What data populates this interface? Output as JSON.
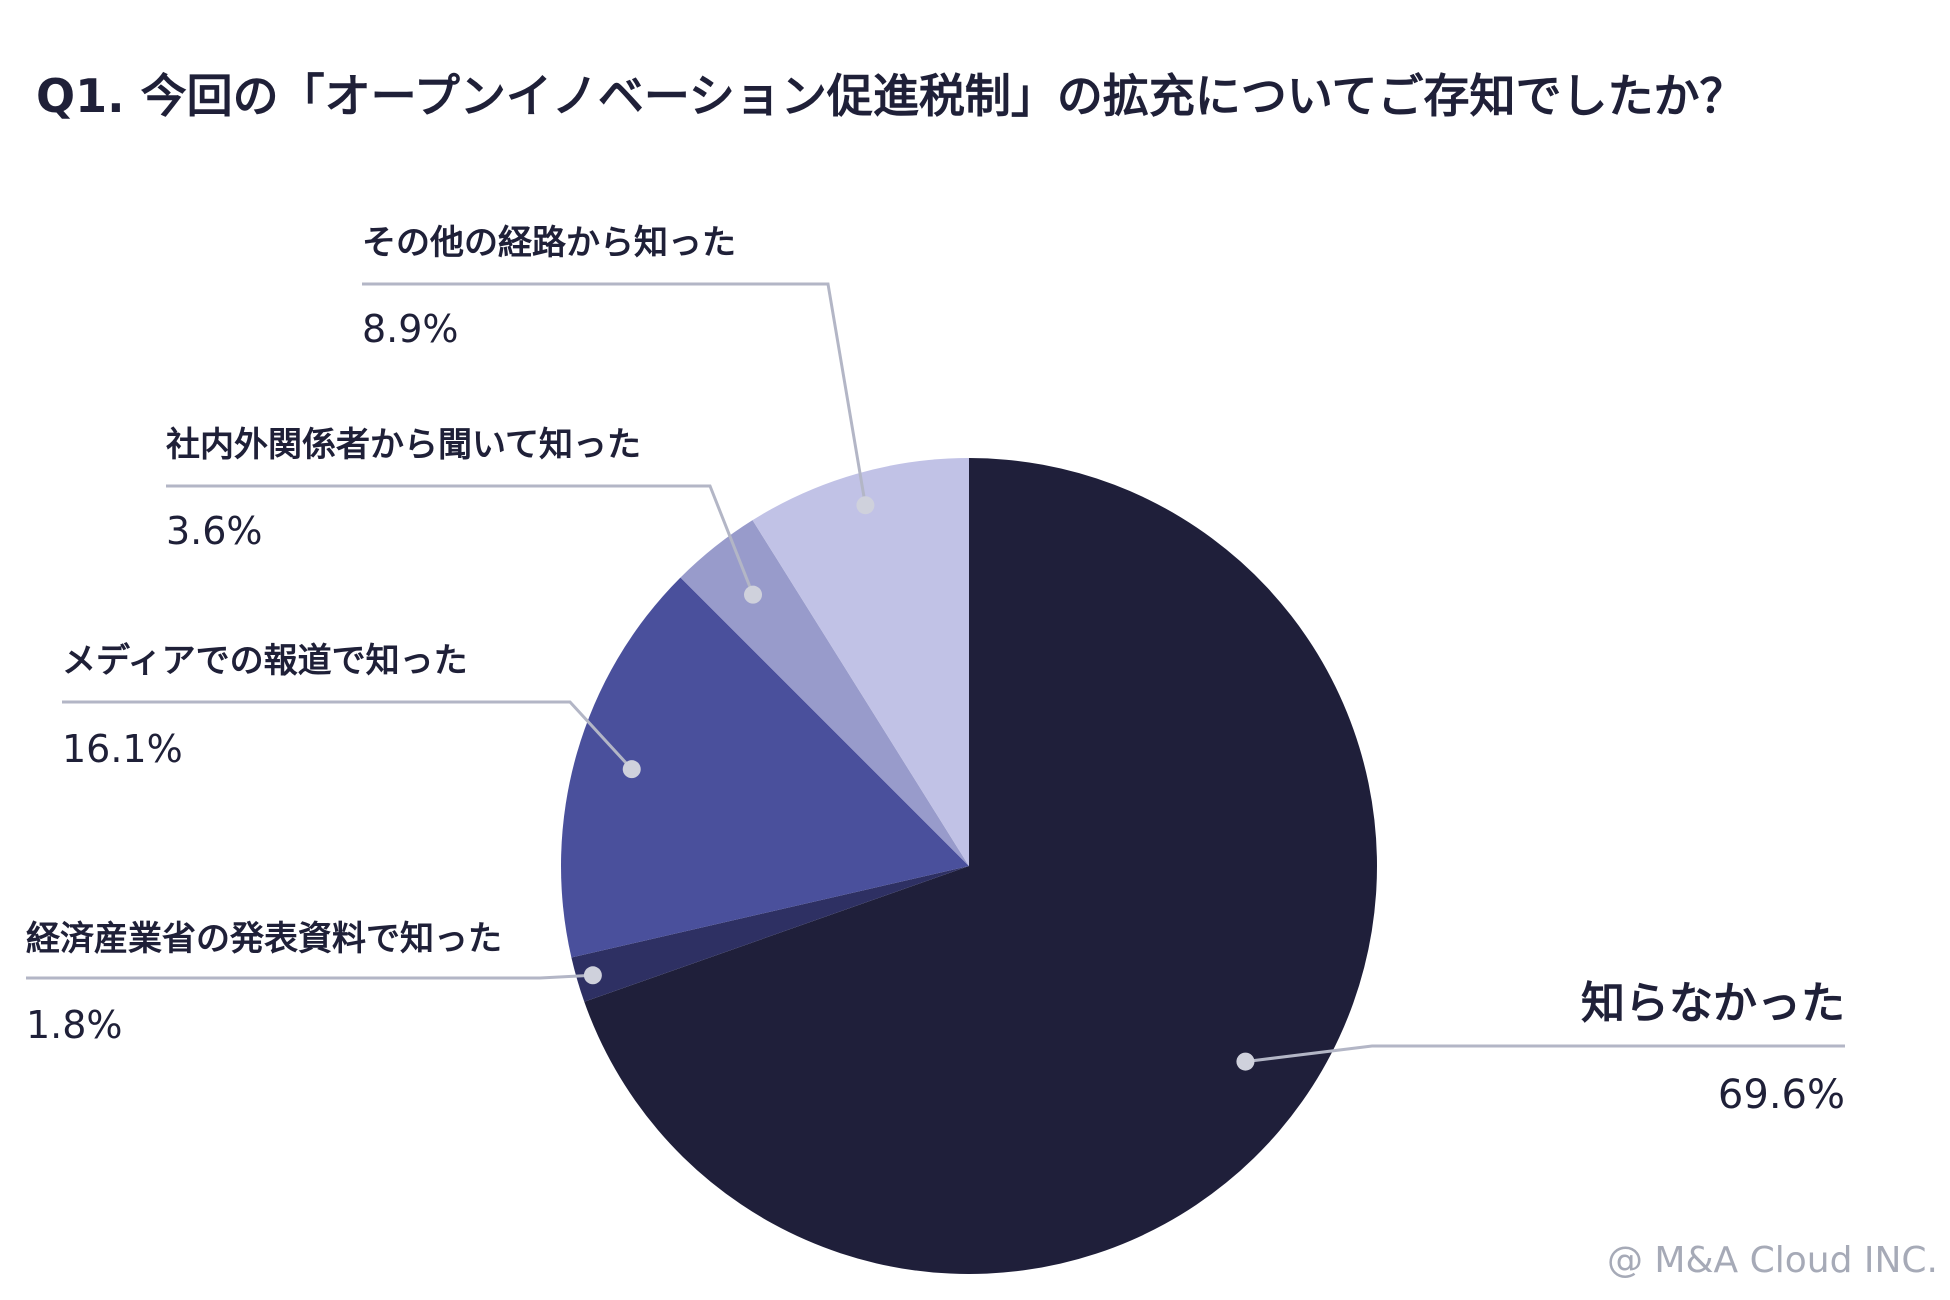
{
  "title": "Q1. 今回の「オープンイノベーション促進税制」の拡充についてご存知でしたか？",
  "credit": "@ M&A Cloud INC.",
  "chart_data": {
    "type": "pie",
    "start_angle_deg": 0,
    "direction": "clockwise",
    "slices": [
      {
        "label": "知らなかった",
        "value": 69.6,
        "value_label": "69.6%",
        "color": "#1f1f3a"
      },
      {
        "label": "経済産業省の発表資料で知った",
        "value": 1.8,
        "value_label": "1.8%",
        "color": "#2e3063"
      },
      {
        "label": "メディアでの報道で知った",
        "value": 16.1,
        "value_label": "16.1%",
        "color": "#4a509c"
      },
      {
        "label": "社内外関係者から聞いて知った",
        "value": 3.6,
        "value_label": "3.6%",
        "color": "#989bcb"
      },
      {
        "label": "その他の経路から知った",
        "value": 8.9,
        "value_label": "8.9%",
        "color": "#c1c2e6"
      }
    ]
  }
}
